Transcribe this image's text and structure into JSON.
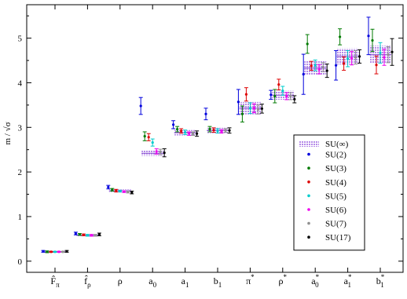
{
  "chart_data": {
    "type": "scatter",
    "ylabel": "m / √σ",
    "xlabel": "",
    "ylim": [
      -0.25,
      5.75
    ],
    "yticks": [
      0,
      1,
      2,
      3,
      4,
      5
    ],
    "grid": false,
    "legend_position": "center-right",
    "categories": [
      {
        "base": "F̂",
        "sub": "π",
        "sup": ""
      },
      {
        "base": "f̂",
        "sub": "ρ",
        "sup": ""
      },
      {
        "base": "ρ",
        "sub": "",
        "sup": ""
      },
      {
        "base": "a",
        "sub": "0",
        "sup": ""
      },
      {
        "base": "a",
        "sub": "1",
        "sup": ""
      },
      {
        "base": "b",
        "sub": "1",
        "sup": ""
      },
      {
        "base": "π",
        "sub": "",
        "sup": "*"
      },
      {
        "base": "ρ",
        "sub": "",
        "sup": "*"
      },
      {
        "base": "a",
        "sub": "0",
        "sup": "*"
      },
      {
        "base": "a",
        "sub": "1",
        "sup": "*"
      },
      {
        "base": "b",
        "sub": "1",
        "sup": "*"
      }
    ],
    "band": {
      "name": "SU(∞)",
      "color": "#c9a6ee",
      "values": [
        0.21,
        0.58,
        1.58,
        2.42,
        2.88,
        2.93,
        3.43,
        3.72,
        4.33,
        4.59,
        4.63
      ],
      "errors": [
        0.02,
        0.02,
        0.03,
        0.06,
        0.06,
        0.06,
        0.14,
        0.1,
        0.16,
        0.18,
        0.2
      ]
    },
    "series": [
      {
        "name": "SU(2)",
        "color": "#0000dd",
        "values": [
          0.22,
          0.62,
          1.66,
          3.48,
          3.06,
          3.3,
          3.57,
          3.73,
          4.19,
          4.39,
          5.05
        ],
        "errors": [
          0.02,
          0.03,
          0.04,
          0.19,
          0.09,
          0.13,
          0.28,
          0.1,
          0.45,
          0.33,
          0.42
        ]
      },
      {
        "name": "SU(3)",
        "color": "#007a00",
        "values": [
          0.21,
          0.6,
          1.6,
          2.8,
          2.96,
          2.96,
          3.3,
          3.7,
          4.87,
          5.03,
          4.95
        ],
        "errors": [
          0.02,
          0.02,
          0.03,
          0.1,
          0.06,
          0.06,
          0.18,
          0.15,
          0.21,
          0.18,
          0.25
        ]
      },
      {
        "name": "SU(4)",
        "color": "#dd0000",
        "values": [
          0.21,
          0.59,
          1.58,
          2.78,
          2.92,
          2.94,
          3.74,
          3.96,
          4.38,
          4.43,
          4.4
        ],
        "errors": [
          0.01,
          0.02,
          0.03,
          0.08,
          0.05,
          0.05,
          0.15,
          0.12,
          0.1,
          0.15,
          0.2
        ]
      },
      {
        "name": "SU(5)",
        "color": "#00cccc",
        "values": [
          0.21,
          0.58,
          1.57,
          2.66,
          2.89,
          2.92,
          3.43,
          3.82,
          4.39,
          4.54,
          4.67
        ],
        "errors": [
          0.01,
          0.02,
          0.02,
          0.08,
          0.05,
          0.05,
          0.12,
          0.1,
          0.12,
          0.18,
          0.23
        ]
      },
      {
        "name": "SU(6)",
        "color": "#ee00ee",
        "values": [
          0.21,
          0.58,
          1.56,
          2.46,
          2.86,
          2.91,
          3.43,
          3.7,
          4.3,
          4.55,
          4.57
        ],
        "errors": [
          0.01,
          0.02,
          0.02,
          0.06,
          0.04,
          0.04,
          0.1,
          0.08,
          0.1,
          0.15,
          0.18
        ]
      },
      {
        "name": "SU(7)",
        "color": "#909090",
        "values": [
          0.21,
          0.58,
          1.55,
          2.45,
          2.86,
          2.93,
          3.4,
          3.7,
          4.35,
          4.57,
          4.63
        ],
        "errors": [
          0.01,
          0.02,
          0.02,
          0.06,
          0.04,
          0.04,
          0.1,
          0.08,
          0.1,
          0.15,
          0.18
        ]
      },
      {
        "name": "SU(17)",
        "color": "#000000",
        "values": [
          0.22,
          0.6,
          1.54,
          2.43,
          2.86,
          2.93,
          3.42,
          3.63,
          4.27,
          4.59,
          4.69
        ],
        "errors": [
          0.02,
          0.03,
          0.03,
          0.09,
          0.06,
          0.06,
          0.1,
          0.08,
          0.15,
          0.15,
          0.3
        ]
      }
    ]
  }
}
